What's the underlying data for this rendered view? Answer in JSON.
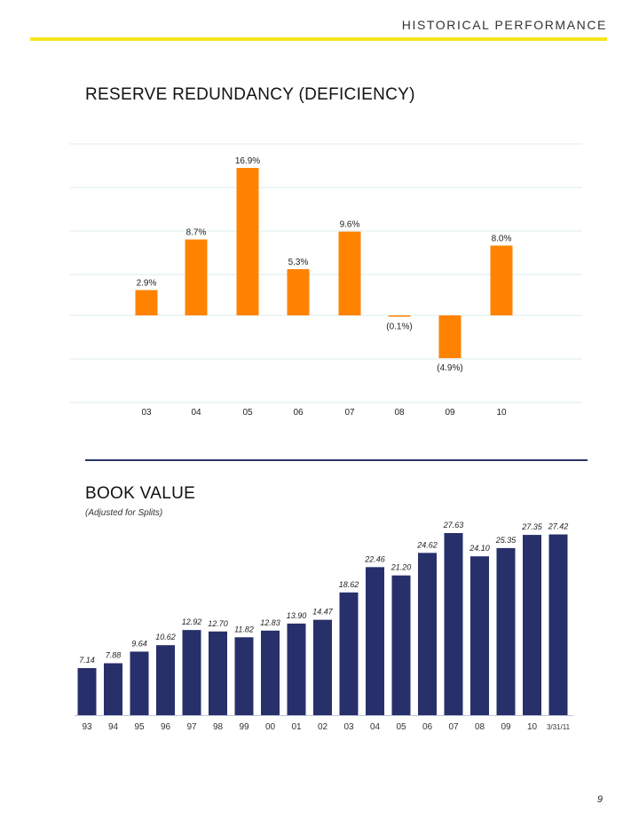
{
  "header": {
    "title": "HISTORICAL PERFORMANCE"
  },
  "page_number": "9",
  "colors": {
    "accent_rule": "#f5e61e",
    "reserve_bar": "#ff8300",
    "book_bar": "#27306b",
    "divider": "#2b3566"
  },
  "reserve": {
    "title": "RESERVE REDUNDANCY (DEFICIENCY)"
  },
  "book": {
    "title": "BOOK VALUE",
    "subtitle": "(Adjusted for Splits)"
  },
  "chart_data": [
    {
      "type": "bar",
      "title": "RESERVE REDUNDANCY (DEFICIENCY)",
      "categories": [
        "03",
        "04",
        "05",
        "06",
        "07",
        "08",
        "09",
        "10"
      ],
      "values": [
        2.9,
        8.7,
        16.9,
        5.3,
        9.6,
        -0.1,
        -4.9,
        8.0
      ],
      "data_labels": [
        "2.9%",
        "8.7%",
        "16.9%",
        "5.3%",
        "9.6%",
        "(0.1%)",
        "(4.9%)",
        "8.0%"
      ],
      "ylim": [
        -10,
        20
      ],
      "grid": true,
      "xlabel": "",
      "ylabel": ""
    },
    {
      "type": "bar",
      "title": "BOOK VALUE",
      "subtitle": "(Adjusted for Splits)",
      "categories": [
        "93",
        "94",
        "95",
        "96",
        "97",
        "98",
        "99",
        "00",
        "01",
        "02",
        "03",
        "04",
        "05",
        "06",
        "07",
        "08",
        "09",
        "10",
        "3/31/11"
      ],
      "values": [
        7.14,
        7.88,
        9.64,
        10.62,
        12.92,
        12.7,
        11.82,
        12.83,
        13.9,
        14.47,
        18.62,
        22.46,
        21.2,
        24.62,
        27.63,
        24.1,
        25.35,
        27.35,
        27.42
      ],
      "data_labels": [
        "7.14",
        "7.88",
        "9.64",
        "10.62",
        "12.92",
        "12.70",
        "11.82",
        "12.83",
        "13.90",
        "14.47",
        "18.62",
        "22.46",
        "21.20",
        "24.62",
        "27.63",
        "24.10",
        "25.35",
        "27.35",
        "27.42"
      ],
      "ylim": [
        0,
        27.63
      ],
      "grid": false,
      "xlabel": "",
      "ylabel": ""
    }
  ]
}
